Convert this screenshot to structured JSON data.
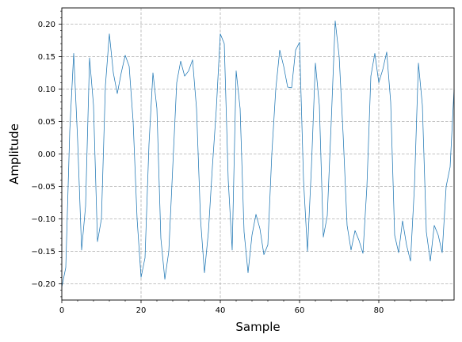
{
  "chart_data": {
    "type": "line",
    "title": "",
    "xlabel": "Sample",
    "ylabel": "Amplitude",
    "xlim": [
      0,
      99
    ],
    "ylim": [
      -0.225,
      0.225
    ],
    "grid": true,
    "line_color": "#1f77b4",
    "xticks": [
      0,
      20,
      40,
      60,
      80
    ],
    "xtick_labels": [
      "0",
      "20",
      "40",
      "60",
      "80"
    ],
    "yticks": [
      -0.2,
      -0.15,
      -0.1,
      -0.05,
      0.0,
      0.05,
      0.1,
      0.15,
      0.2
    ],
    "ytick_labels": [
      "−0.20",
      "−0.15",
      "−0.10",
      "−0.05",
      "0.00",
      "0.05",
      "0.10",
      "0.15",
      "0.20"
    ],
    "series": [
      {
        "x": [
          0,
          1,
          2,
          3,
          4,
          5,
          6,
          7,
          8,
          9,
          10,
          11,
          12,
          13,
          14,
          15,
          16,
          17,
          18,
          19,
          20,
          21,
          22,
          23,
          24,
          25,
          26,
          27,
          28,
          29,
          30,
          31,
          32,
          33,
          34,
          35,
          36,
          37,
          38,
          39,
          40,
          41,
          42,
          43,
          44,
          45,
          46,
          47,
          48,
          49,
          50,
          51,
          52,
          53,
          54,
          55,
          56,
          57,
          58,
          59,
          60,
          61,
          62,
          63,
          64,
          65,
          66,
          67,
          68,
          69,
          70,
          71,
          72,
          73,
          74,
          75,
          76,
          77,
          78,
          79,
          80,
          81,
          82,
          83,
          84,
          85,
          86,
          87,
          88,
          89,
          90,
          91,
          92,
          93,
          94,
          95,
          96,
          97,
          98,
          99
        ],
        "values": [
          -0.205,
          -0.175,
          0.035,
          0.155,
          0.02,
          -0.148,
          -0.08,
          0.148,
          0.075,
          -0.135,
          -0.1,
          0.105,
          0.185,
          0.125,
          0.093,
          0.125,
          0.152,
          0.135,
          0.05,
          -0.1,
          -0.19,
          -0.16,
          0.015,
          0.125,
          0.07,
          -0.13,
          -0.193,
          -0.15,
          -0.02,
          0.11,
          0.143,
          0.12,
          0.128,
          0.145,
          0.07,
          -0.1,
          -0.183,
          -0.12,
          -0.02,
          0.07,
          0.185,
          0.17,
          -0.04,
          -0.148,
          0.128,
          0.07,
          -0.12,
          -0.183,
          -0.125,
          -0.093,
          -0.115,
          -0.155,
          -0.14,
          0.0,
          0.1,
          0.16,
          0.135,
          0.103,
          0.102,
          0.16,
          0.172,
          -0.04,
          -0.15,
          -0.02,
          0.14,
          0.075,
          -0.128,
          -0.095,
          0.05,
          0.205,
          0.15,
          0.03,
          -0.11,
          -0.148,
          -0.118,
          -0.133,
          -0.153,
          -0.05,
          0.12,
          0.155,
          0.11,
          0.13,
          0.157,
          0.08,
          -0.125,
          -0.152,
          -0.103,
          -0.14,
          -0.165,
          -0.05,
          0.14,
          0.075,
          -0.12,
          -0.165,
          -0.11,
          -0.125,
          -0.152,
          -0.05,
          -0.02,
          0.1
        ]
      }
    ]
  }
}
